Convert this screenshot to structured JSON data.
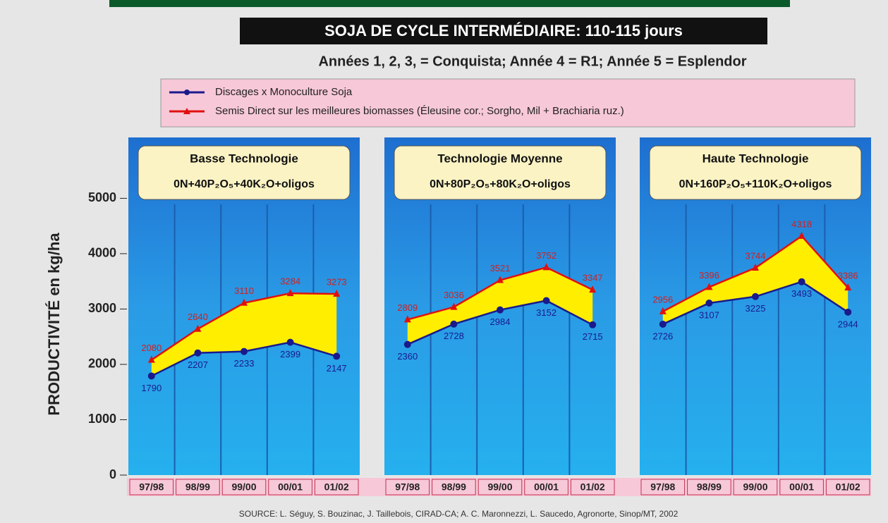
{
  "chart_data": {
    "type": "line",
    "title": "SOJA DE CYCLE INTERMÉDIAIRE: 110-115 jours",
    "subtitle": "Années 1, 2, 3, = Conquista; Année 4 = R1; Année 5 = Esplendor",
    "y_label": "PRODUCTIVITÉ en kg/ha",
    "source": "SOURCE: L. Séguy, S. Bouzinac, J. Taillebois, CIRAD-CA; A. C. Maronnezzi, L. Saucedo, Agronorte, Sinop/MT, 2002",
    "ylim": [
      0,
      6100
    ],
    "yticks": [
      0,
      1000,
      2000,
      3000,
      4000,
      5000
    ],
    "categories": [
      "97/98",
      "98/99",
      "99/00",
      "00/01",
      "01/02"
    ],
    "series": [
      {
        "name": "Discages x Monoculture Soja",
        "color": "#1a1a8c"
      },
      {
        "name": "Semis Direct sur les meilleures biomasses (Éleusine cor.; Sorgho, Mil + Brachiaria ruz.)",
        "color": "#e01010"
      }
    ],
    "panels": [
      {
        "title": "Basse Technologie",
        "formula": "0N+40P₂O₅+40K₂O+oligos",
        "values": [
          [
            1790,
            2207,
            2233,
            2399,
            2147
          ],
          [
            2080,
            2640,
            3110,
            3284,
            3273
          ]
        ]
      },
      {
        "title": "Technologie Moyenne",
        "formula": "0N+80P₂O₅+80K₂O+oligos",
        "values": [
          [
            2360,
            2728,
            2984,
            3152,
            2715
          ],
          [
            2809,
            3036,
            3521,
            3752,
            3347
          ]
        ]
      },
      {
        "title": "Haute Technologie",
        "formula": "0N+160P₂O₅+110K₂O+oligos",
        "values": [
          [
            2726,
            3107,
            3225,
            3493,
            2944
          ],
          [
            2956,
            3396,
            3744,
            4318,
            3386
          ]
        ]
      }
    ]
  }
}
